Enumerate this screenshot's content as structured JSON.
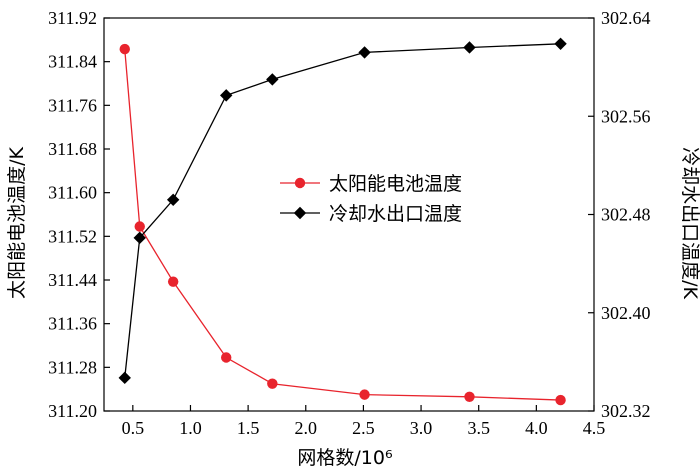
{
  "chart_data": {
    "type": "line",
    "xlabel": "网格数/10⁶",
    "ylabel_left": "太阳能电池温度/K",
    "ylabel_right": "冷却水出口温度/K",
    "xlim": [
      0.25,
      4.5
    ],
    "x_ticks": [
      0.5,
      1.0,
      1.5,
      2.0,
      2.5,
      3.0,
      3.5,
      4.0,
      4.5
    ],
    "x_tick_labels": [
      "0.5",
      "1.0",
      "1.5",
      "2.0",
      "2.5",
      "3.0",
      "3.5",
      "4.0",
      "4.5"
    ],
    "ylim_left": [
      311.2,
      311.92
    ],
    "y_left_ticks": [
      311.2,
      311.28,
      311.36,
      311.44,
      311.52,
      311.6,
      311.68,
      311.76,
      311.84,
      311.92
    ],
    "y_left_tick_labels": [
      "311.20",
      "311.28",
      "311.36",
      "311.44",
      "311.52",
      "311.60",
      "311.68",
      "311.76",
      "311.84",
      "311.92"
    ],
    "ylim_right": [
      302.32,
      302.64
    ],
    "y_right_ticks": [
      302.32,
      302.4,
      302.48,
      302.56,
      302.64
    ],
    "y_right_tick_labels": [
      "302.32",
      "302.40",
      "302.48",
      "302.56",
      "302.64"
    ],
    "legend_position": "center",
    "series": [
      {
        "name": "太阳能电池温度",
        "axis": "left",
        "color": "#e8242d",
        "marker": "circle",
        "x": [
          0.43,
          0.56,
          0.85,
          1.31,
          1.71,
          2.51,
          3.42,
          4.21
        ],
        "values": [
          311.863,
          311.538,
          311.437,
          311.298,
          311.25,
          311.23,
          311.226,
          311.22
        ]
      },
      {
        "name": "冷却水出口温度",
        "axis": "right",
        "color": "#000000",
        "marker": "diamond",
        "x": [
          0.43,
          0.56,
          0.85,
          1.31,
          1.71,
          2.51,
          3.42,
          4.21
        ],
        "values": [
          302.347,
          302.461,
          302.492,
          302.577,
          302.59,
          302.612,
          302.616,
          302.619
        ]
      }
    ]
  }
}
